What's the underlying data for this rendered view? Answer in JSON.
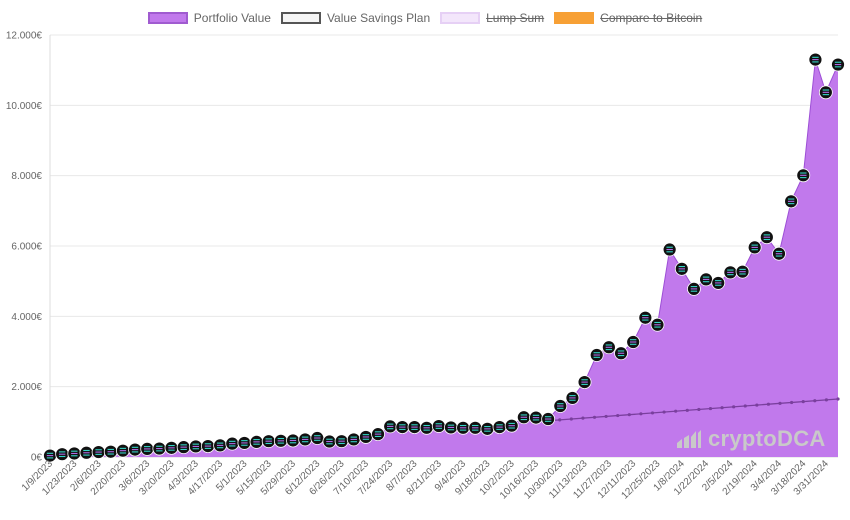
{
  "legend": [
    {
      "label": "Portfolio Value",
      "fill": "#c179ec",
      "border": "#a05bd0",
      "hidden": false
    },
    {
      "label": "Value Savings Plan",
      "fill": "#f5f5f5",
      "border": "#555555",
      "hidden": false
    },
    {
      "label": "Lump Sum",
      "fill": "#f3e6fb",
      "border": "#e6d0f5",
      "hidden": true
    },
    {
      "label": "Compare to Bitcoin",
      "fill": "#f7a035",
      "border": "#f7a035",
      "hidden": true
    }
  ],
  "watermark": {
    "text": "cryptoDCA",
    "icon": "chart-bars-logo-icon"
  },
  "colors": {
    "portfolio_fill": "#c179ec",
    "portfolio_line": "#9d4fd6",
    "savings_line": "#7a3f9e",
    "marker_outer": "#111111",
    "marker_stripes": [
      "#35d4c6",
      "#b06ae6",
      "#35d4c6"
    ],
    "grid": "#e8e8e8"
  },
  "chart_data": {
    "type": "area",
    "y_ticks": [
      "0€",
      "2.000€",
      "4.000€",
      "6.000€",
      "8.000€",
      "10.000€",
      "12.000€"
    ],
    "ylim": [
      0,
      12000
    ],
    "grid": true,
    "legend_position": "top",
    "x_tick_labels": [
      "1/9/2023",
      "1/23/2023",
      "2/6/2023",
      "2/20/2023",
      "3/6/2023",
      "3/20/2023",
      "4/3/2023",
      "4/17/2023",
      "5/1/2023",
      "5/15/2023",
      "5/29/2023",
      "6/12/2023",
      "6/26/2023",
      "7/10/2023",
      "7/24/2023",
      "8/7/2023",
      "8/21/2023",
      "9/4/2023",
      "9/18/2023",
      "10/2/2023",
      "10/16/2023",
      "10/30/2023",
      "11/13/2023",
      "11/27/2023",
      "12/11/2023",
      "12/25/2023",
      "1/8/2024",
      "1/22/2024",
      "2/5/2024",
      "2/19/2024",
      "3/4/2024",
      "3/18/2024",
      "3/31/2024"
    ],
    "series": [
      {
        "name": "Portfolio Value",
        "x": [
          "1/9/2023",
          "1/16/2023",
          "1/23/2023",
          "1/30/2023",
          "2/6/2023",
          "2/13/2023",
          "2/20/2023",
          "2/27/2023",
          "3/6/2023",
          "3/13/2023",
          "3/20/2023",
          "3/27/2023",
          "4/3/2023",
          "4/10/2023",
          "4/17/2023",
          "4/24/2023",
          "5/1/2023",
          "5/8/2023",
          "5/15/2023",
          "5/22/2023",
          "5/29/2023",
          "6/5/2023",
          "6/12/2023",
          "6/19/2023",
          "6/26/2023",
          "7/3/2023",
          "7/10/2023",
          "7/17/2023",
          "7/24/2023",
          "7/31/2023",
          "8/7/2023",
          "8/14/2023",
          "8/21/2023",
          "8/28/2023",
          "9/4/2023",
          "9/11/2023",
          "9/18/2023",
          "9/25/2023",
          "10/2/2023",
          "10/9/2023",
          "10/16/2023",
          "10/23/2023",
          "10/30/2023",
          "11/6/2023",
          "11/13/2023",
          "11/20/2023",
          "11/27/2023",
          "12/4/2023",
          "12/11/2023",
          "12/18/2023",
          "12/25/2023",
          "1/1/2024",
          "1/8/2024",
          "1/15/2024",
          "1/22/2024",
          "1/29/2024",
          "2/5/2024",
          "2/12/2024",
          "2/19/2024",
          "2/26/2024",
          "3/4/2024",
          "3/11/2024",
          "3/18/2024",
          "3/25/2024",
          "3/31/2024",
          "4/7/2024"
        ],
        "values": [
          40,
          80,
          100,
          120,
          140,
          150,
          180,
          210,
          230,
          240,
          260,
          280,
          300,
          310,
          330,
          380,
          400,
          430,
          450,
          460,
          470,
          500,
          540,
          440,
          450,
          500,
          570,
          650,
          870,
          850,
          850,
          830,
          880,
          840,
          830,
          830,
          800,
          850,
          890,
          1130,
          1120,
          1080,
          1450,
          1680,
          2130,
          2900,
          3120,
          2950,
          3270,
          3960,
          3760,
          5900,
          5350,
          4780,
          5050,
          4950,
          5250,
          5270,
          5960,
          6250,
          5780,
          7270,
          8010,
          11300,
          10370,
          11160
        ]
      },
      {
        "name": "Value Savings Plan",
        "x_start": "10/23/2023",
        "x_end": "4/7/2024",
        "values": [
          1030,
          1650
        ]
      }
    ]
  }
}
